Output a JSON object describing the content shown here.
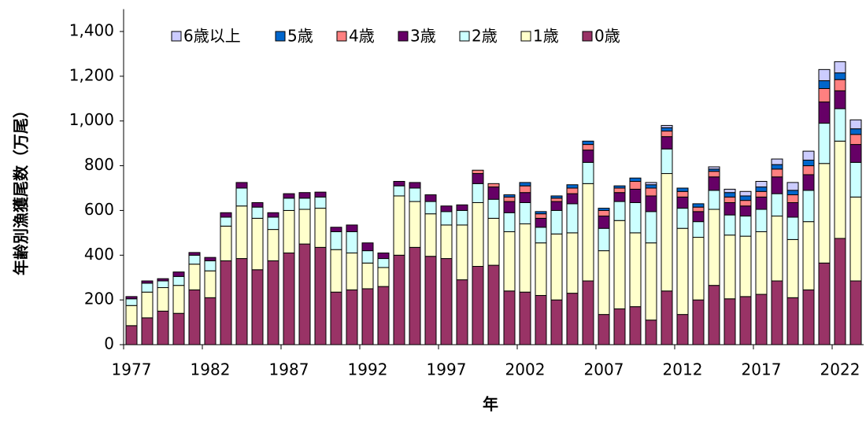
{
  "chart_data": {
    "type": "stacked-bar",
    "y_label": "年齢別漁獲尾数（万尾）",
    "x_label": "年",
    "categories": [
      "1977",
      null,
      null,
      null,
      null,
      "1982",
      null,
      null,
      null,
      null,
      "1987",
      null,
      null,
      null,
      null,
      "1992",
      null,
      null,
      null,
      null,
      "1997",
      null,
      null,
      null,
      null,
      "2002",
      null,
      null,
      null,
      null,
      "2007",
      null,
      null,
      null,
      null,
      "2012",
      null,
      null,
      null,
      null,
      "2017",
      null,
      null,
      null,
      null,
      "2022",
      null
    ],
    "ylim": [
      0,
      1500
    ],
    "yticks": [
      0,
      200,
      400,
      600,
      800,
      {
        "value": 1000,
        "label": "1,000"
      },
      {
        "value": 1200,
        "label": "1,200"
      },
      {
        "value": 1400,
        "label": "1,400"
      }
    ],
    "legend": "top",
    "series": [
      {
        "name": "0歳",
        "color": "#993366",
        "values": [
          85,
          120,
          150,
          140,
          245,
          210,
          375,
          385,
          335,
          375,
          410,
          450,
          435,
          235,
          245,
          250,
          260,
          400,
          435,
          395,
          385,
          290,
          350,
          355,
          240,
          235,
          220,
          200,
          230,
          285,
          135,
          160,
          170,
          110,
          240,
          135,
          200,
          265,
          205,
          215,
          225,
          285,
          210,
          245,
          365,
          475,
          285
        ]
      },
      {
        "name": "1歳",
        "color": "#ffffcc",
        "values": [
          90,
          115,
          105,
          125,
          115,
          120,
          155,
          235,
          230,
          140,
          190,
          155,
          175,
          190,
          165,
          115,
          85,
          265,
          205,
          190,
          150,
          245,
          285,
          210,
          265,
          305,
          235,
          295,
          270,
          435,
          285,
          395,
          330,
          345,
          525,
          385,
          280,
          340,
          285,
          270,
          280,
          290,
          260,
          305,
          445,
          435,
          375
        ]
      },
      {
        "name": "2歳",
        "color": "#ccffff",
        "values": [
          30,
          40,
          30,
          40,
          40,
          45,
          40,
          80,
          50,
          55,
          55,
          50,
          50,
          80,
          95,
          55,
          40,
          45,
          60,
          55,
          60,
          65,
          85,
          85,
          85,
          95,
          70,
          105,
          130,
          95,
          100,
          85,
          135,
          140,
          110,
          90,
          70,
          85,
          90,
          90,
          100,
          100,
          100,
          140,
          180,
          145,
          155
        ]
      },
      {
        "name": "3歳",
        "color": "#660066",
        "values": [
          10,
          10,
          10,
          20,
          12,
          15,
          20,
          25,
          20,
          20,
          20,
          25,
          22,
          20,
          30,
          35,
          25,
          20,
          25,
          30,
          25,
          25,
          45,
          55,
          50,
          45,
          40,
          40,
          45,
          55,
          55,
          40,
          60,
          70,
          55,
          50,
          45,
          60,
          55,
          45,
          55,
          75,
          65,
          70,
          95,
          80,
          80
        ]
      },
      {
        "name": "4歳",
        "color": "#ff8080",
        "values": [
          0,
          0,
          0,
          0,
          0,
          0,
          0,
          0,
          0,
          0,
          0,
          0,
          0,
          0,
          0,
          0,
          0,
          0,
          0,
          0,
          0,
          0,
          15,
          15,
          20,
          30,
          20,
          15,
          25,
          25,
          25,
          20,
          35,
          35,
          25,
          25,
          20,
          25,
          25,
          25,
          25,
          35,
          35,
          40,
          60,
          50,
          45
        ]
      },
      {
        "name": "5歳",
        "color": "#0066cc",
        "values": [
          0,
          0,
          0,
          0,
          0,
          0,
          0,
          0,
          0,
          0,
          0,
          0,
          0,
          0,
          0,
          0,
          0,
          0,
          0,
          0,
          0,
          0,
          0,
          0,
          10,
          15,
          10,
          10,
          15,
          15,
          10,
          10,
          15,
          15,
          15,
          15,
          15,
          10,
          20,
          20,
          20,
          20,
          20,
          25,
          35,
          30,
          25
        ]
      },
      {
        "name": "6歳以上",
        "color": "#ccccff",
        "values": [
          0,
          0,
          0,
          0,
          0,
          0,
          0,
          0,
          0,
          0,
          0,
          0,
          0,
          0,
          0,
          0,
          0,
          0,
          0,
          0,
          0,
          0,
          0,
          0,
          0,
          0,
          0,
          0,
          0,
          0,
          0,
          0,
          0,
          10,
          10,
          0,
          0,
          10,
          15,
          20,
          25,
          25,
          35,
          40,
          50,
          50,
          40
        ]
      }
    ]
  }
}
